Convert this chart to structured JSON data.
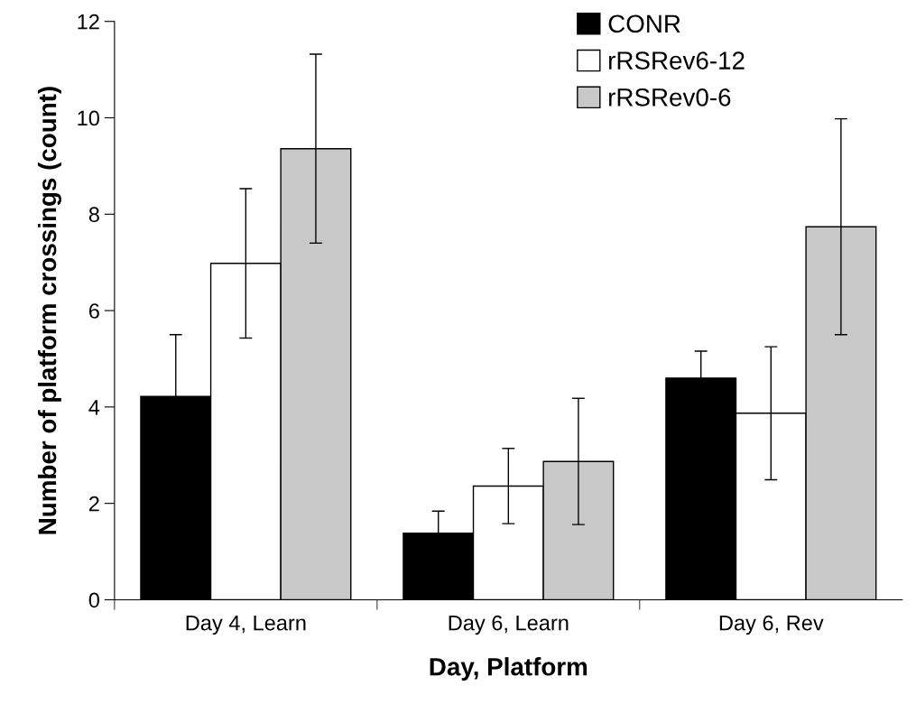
{
  "chart_data": {
    "type": "bar",
    "xlabel": "Day, Platform",
    "ylabel": "Number of platform crossings (count)",
    "categories": [
      "Day 4, Learn",
      "Day 6, Learn",
      "Day 6, Rev"
    ],
    "series": [
      {
        "name": "CONR",
        "color": "#000000",
        "values": [
          4.22,
          1.38,
          4.6
        ],
        "errors": [
          1.28,
          0.46,
          0.56
        ]
      },
      {
        "name": "rRSRev6-12",
        "color": "#ffffff",
        "values": [
          6.98,
          2.36,
          3.87
        ],
        "errors": [
          1.55,
          0.78,
          1.38
        ]
      },
      {
        "name": "rRSRev0-6",
        "color": "#c8c8c8",
        "values": [
          9.36,
          2.87,
          7.74
        ],
        "errors": [
          1.96,
          1.31,
          2.24
        ]
      }
    ],
    "ylim": [
      0,
      12
    ],
    "yticks": [
      0,
      2,
      4,
      6,
      8,
      10,
      12
    ],
    "grid": false,
    "legend": "top right"
  }
}
